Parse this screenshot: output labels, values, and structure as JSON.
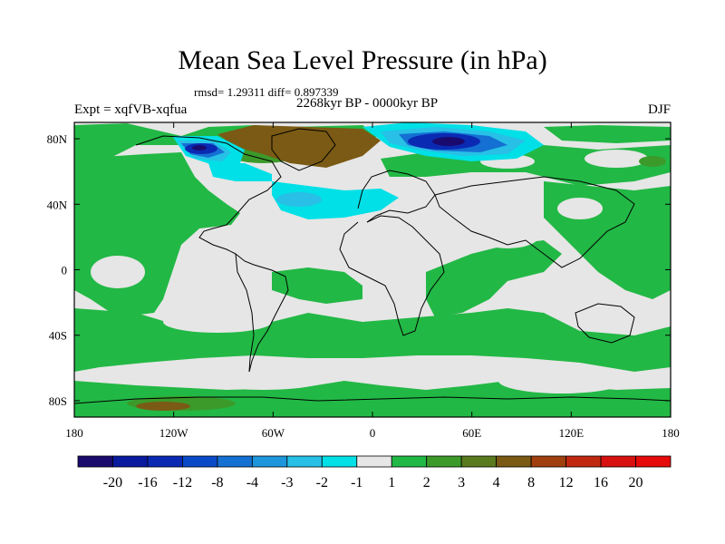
{
  "title": "Mean Sea Level Pressure (in hPa)",
  "stats": "rmsd= 1.29311 diff= 0.897339",
  "period": "2268kyr BP - 0000kyr BP",
  "experiment": "Expt = xqfVB-xqfua",
  "season": "DJF",
  "map": {
    "projection": "cylindrical-equidistant",
    "lon_range": [
      -180,
      180
    ],
    "lat_range": [
      -90,
      90
    ],
    "lon_ticks": [
      {
        "value": -180,
        "label": "180"
      },
      {
        "value": -120,
        "label": "120W"
      },
      {
        "value": -60,
        "label": "60W"
      },
      {
        "value": 0,
        "label": "0"
      },
      {
        "value": 60,
        "label": "60E"
      },
      {
        "value": 120,
        "label": "120E"
      },
      {
        "value": 180,
        "label": "180"
      }
    ],
    "lat_ticks": [
      {
        "value": 80,
        "label": "80N"
      },
      {
        "value": 40,
        "label": "40N"
      },
      {
        "value": 0,
        "label": "0"
      },
      {
        "value": -40,
        "label": "40S"
      },
      {
        "value": -80,
        "label": "80S"
      }
    ]
  },
  "colorbar": {
    "levels": [
      "-20",
      "-16",
      "-12",
      "-8",
      "-4",
      "-3",
      "-2",
      "-1",
      "1",
      "2",
      "3",
      "4",
      "8",
      "12",
      "16",
      "20"
    ],
    "colors": [
      "#1a0a6e",
      "#0a1a9e",
      "#0a2ab4",
      "#0a4ac8",
      "#1470d2",
      "#1e96dc",
      "#28c0e6",
      "#00e0e6",
      "#e6e6e6",
      "#22b845",
      "#3c9a2a",
      "#5a7a1e",
      "#7a5a14",
      "#a0400f",
      "#c02810",
      "#d81010",
      "#e60a0a"
    ]
  }
}
